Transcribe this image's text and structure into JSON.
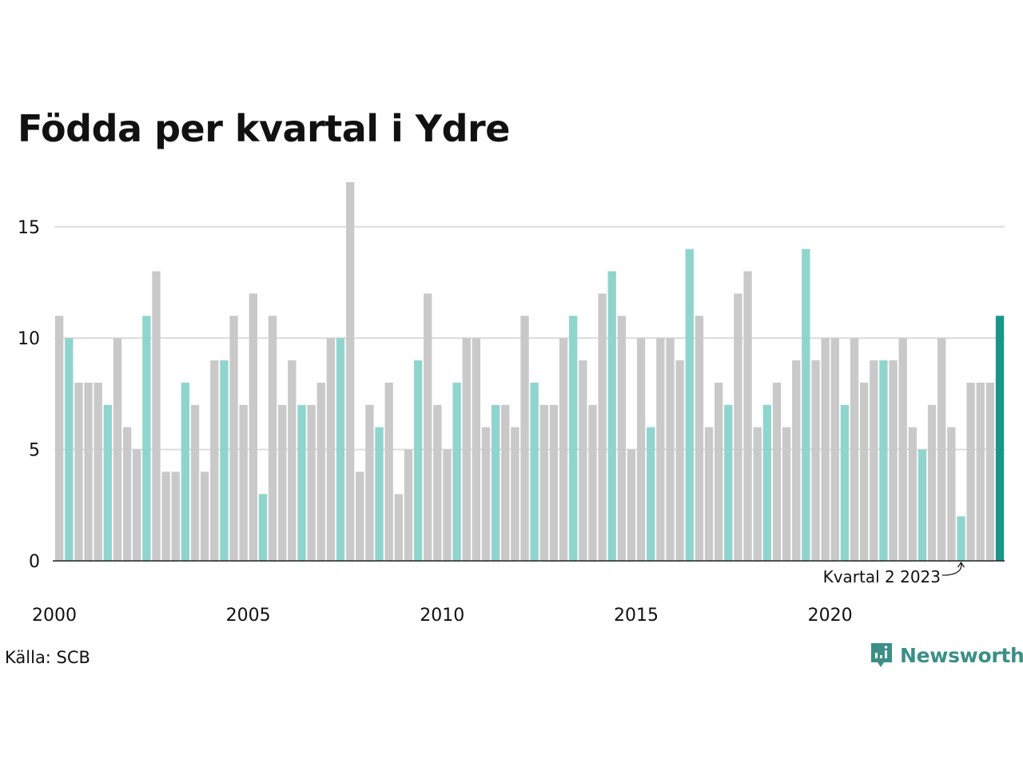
{
  "chart_data": {
    "type": "bar",
    "title": "Födda per kvartal i Ydre",
    "xlabel": "",
    "ylabel": "",
    "ylim": [
      0,
      17
    ],
    "yticks": [
      0,
      5,
      10,
      15
    ],
    "xticks": [
      "2000",
      "2005",
      "2010",
      "2015",
      "2020"
    ],
    "grid": true,
    "annotation": "Kvartal 2 2023",
    "values": [
      11,
      10,
      8,
      8,
      8,
      7,
      10,
      6,
      5,
      11,
      13,
      4,
      4,
      8,
      7,
      4,
      9,
      9,
      11,
      7,
      12,
      3,
      11,
      7,
      9,
      7,
      7,
      8,
      10,
      10,
      17,
      4,
      7,
      6,
      8,
      3,
      5,
      9,
      12,
      7,
      5,
      8,
      10,
      10,
      6,
      7,
      7,
      6,
      11,
      8,
      7,
      7,
      10,
      11,
      9,
      7,
      12,
      13,
      11,
      5,
      10,
      6,
      10,
      10,
      9,
      14,
      11,
      6,
      8,
      7,
      12,
      13,
      6,
      7,
      8,
      6,
      9,
      14,
      9,
      10,
      10,
      7,
      10,
      8,
      9,
      9,
      9,
      10,
      6,
      5,
      7,
      10,
      6,
      2,
      8,
      8,
      8,
      11
    ],
    "highlight_quarter": 2,
    "colors": {
      "default": "#c9c9c9",
      "highlight": "#8fd5cd",
      "latest": "#1a9688",
      "axis": "#222222",
      "grid": "#dcdcdc"
    }
  },
  "source": "Källa: SCB",
  "logo": {
    "name": "Newsworthy",
    "icon": "newsworthy-logo-icon"
  }
}
